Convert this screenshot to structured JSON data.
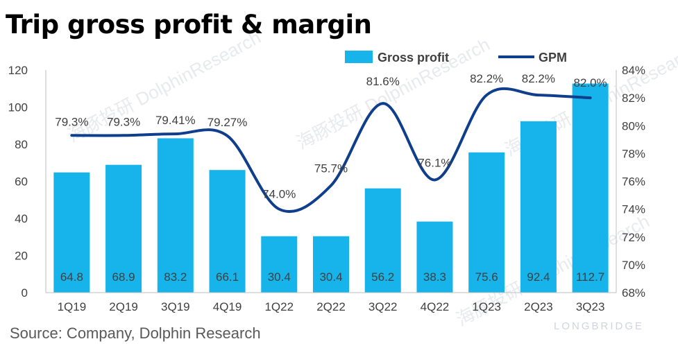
{
  "chart_data": {
    "type": "bar",
    "title": "Trip gross profit & margin",
    "source": "Source: Company, Dolphin Research",
    "categories": [
      "1Q19",
      "2Q19",
      "3Q19",
      "4Q19",
      "1Q22",
      "2Q22",
      "3Q22",
      "4Q22",
      "1Q23",
      "2Q23",
      "3Q23"
    ],
    "series": [
      {
        "name": "Gross profit",
        "type": "bar",
        "axis": "left",
        "color": "#16b4ea",
        "values": [
          64.8,
          68.9,
          83.2,
          66.1,
          30.4,
          30.4,
          56.2,
          38.3,
          75.6,
          92.4,
          112.7
        ],
        "labels": [
          "64.8",
          "68.9",
          "83.2",
          "66.1",
          "30.4",
          "30.4",
          "56.2",
          "38.3",
          "75.6",
          "92.4",
          "112.7"
        ]
      },
      {
        "name": "GPM",
        "type": "line",
        "axis": "right",
        "color": "#0f3f8c",
        "values": [
          79.3,
          79.3,
          79.41,
          79.27,
          74.0,
          75.7,
          81.6,
          76.1,
          82.2,
          82.2,
          82.0
        ],
        "labels": [
          "79.3%",
          "79.3%",
          "79.41%",
          "79.27%",
          "74.0%",
          "75.7%",
          "81.6%",
          "76.1%",
          "82.2%",
          "82.2%",
          "82.0%"
        ]
      }
    ],
    "y_left": {
      "min": 0,
      "max": 120,
      "step": 20,
      "ticks": [
        "0",
        "20",
        "40",
        "60",
        "80",
        "100",
        "120"
      ]
    },
    "y_right": {
      "min": 68,
      "max": 84,
      "step": 2,
      "ticks": [
        "68%",
        "70%",
        "72%",
        "74%",
        "76%",
        "78%",
        "80%",
        "82%",
        "84%"
      ]
    },
    "legend": {
      "position": "top",
      "entries": [
        "Gross profit",
        "GPM"
      ]
    },
    "grid": false
  },
  "watermarks": [
    "海豚投研 DolphinResearch",
    "海豚投研 DolphinResearch",
    "海豚投研 DolphinResearch",
    "海豚投研 DolphinResearch"
  ],
  "brand_mark": "LONGBRIDGE"
}
